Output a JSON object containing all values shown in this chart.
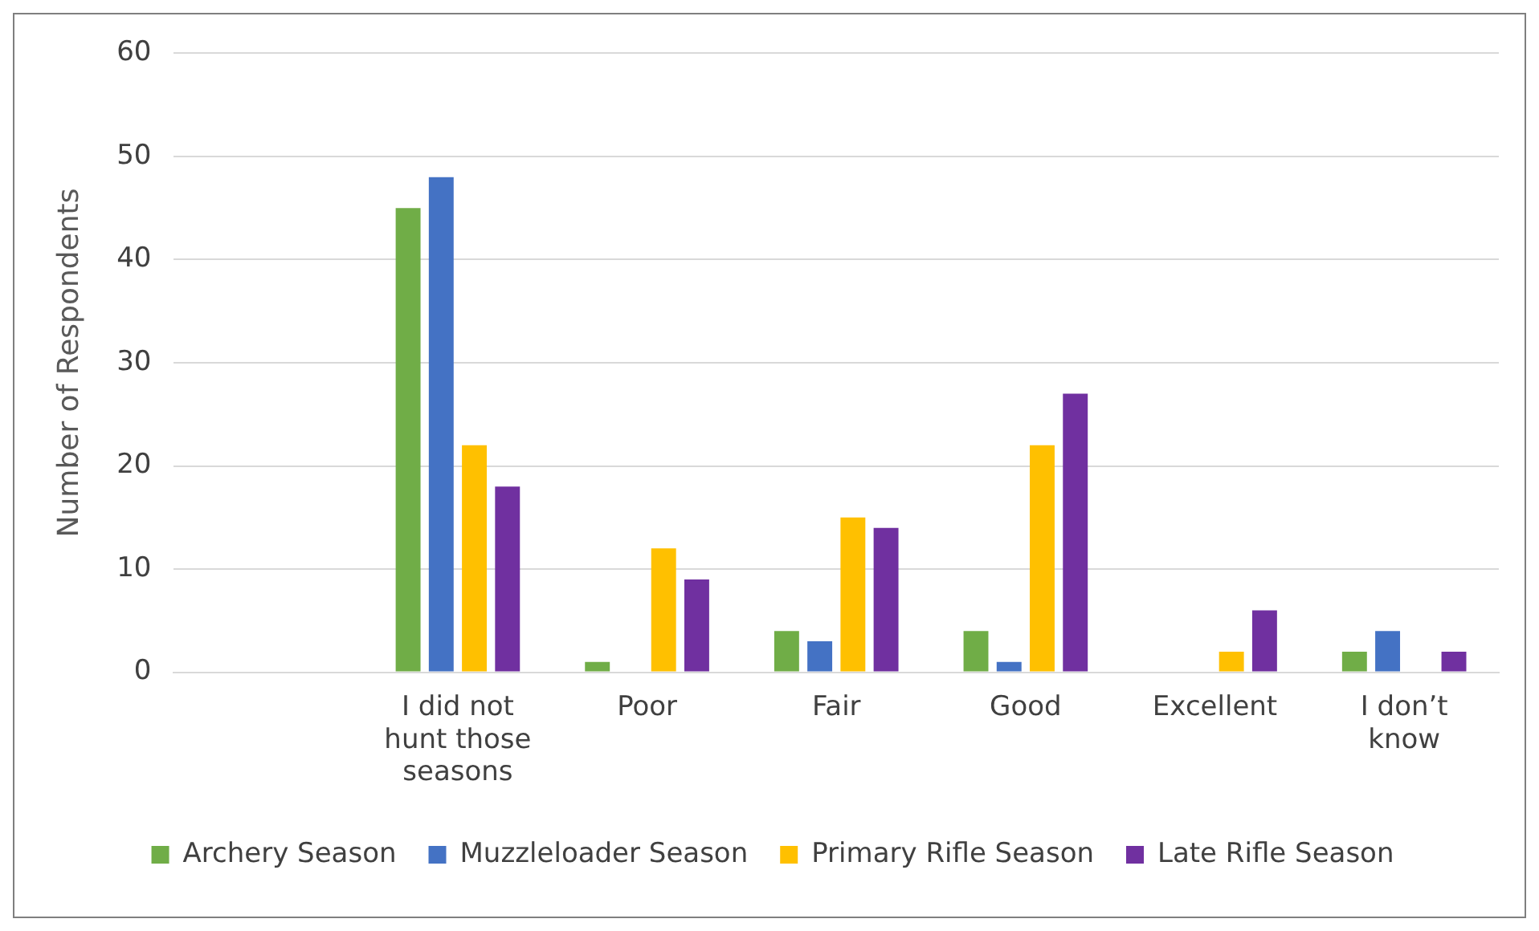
{
  "chart_data": {
    "type": "bar",
    "ylabel": "Number of Respondents",
    "categories": [
      null,
      "I did not hunt those seasons",
      "Poor",
      "Fair",
      "Good",
      "Excellent",
      "I don’t know"
    ],
    "series": [
      {
        "name": "Archery Season",
        "color": "#70ad47",
        "values": [
          null,
          45,
          1,
          4,
          4,
          0,
          2
        ]
      },
      {
        "name": "Muzzleloader Season",
        "color": "#4472c4",
        "values": [
          null,
          48,
          0,
          3,
          1,
          0,
          4
        ]
      },
      {
        "name": "Primary Rifle Season",
        "color": "#ffc000",
        "values": [
          null,
          22,
          12,
          15,
          22,
          2,
          0
        ]
      },
      {
        "name": "Late Rifle Season",
        "color": "#7030a0",
        "values": [
          null,
          18,
          9,
          14,
          27,
          6,
          2
        ]
      }
    ],
    "ylim": [
      0,
      60
    ],
    "yticks": [
      0,
      10,
      20,
      30,
      40,
      50,
      60
    ],
    "grid": "y",
    "legend": "bottom"
  }
}
